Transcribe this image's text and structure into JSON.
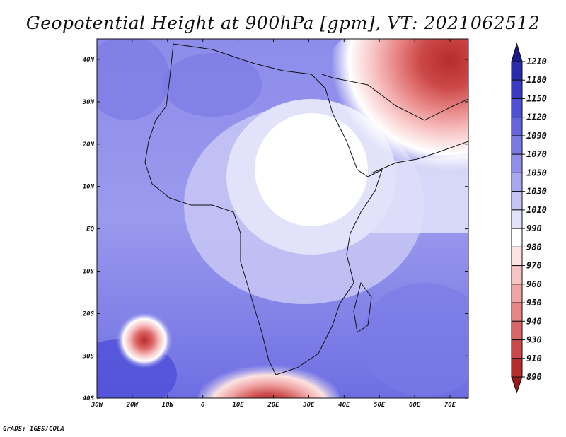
{
  "title": "Geopotential Height at 900hPa [gpm], VT: 2021062512",
  "credit": "GrADS: IGES/COLA",
  "axes": {
    "x_ticks": [
      "30W",
      "20W",
      "10W",
      "0",
      "10E",
      "20E",
      "30E",
      "40E",
      "50E",
      "60E",
      "70E"
    ],
    "y_ticks": [
      "40N",
      "30N",
      "20N",
      "10N",
      "EQ",
      "10S",
      "20S",
      "30S",
      "40S"
    ]
  },
  "colorbar": {
    "levels": [
      "1210",
      "1180",
      "1150",
      "1120",
      "1090",
      "1070",
      "1050",
      "1030",
      "1010",
      "990",
      "980",
      "970",
      "960",
      "950",
      "940",
      "930",
      "910",
      "890"
    ],
    "colors": [
      "#1a1a8c",
      "#2a2ab0",
      "#3a3ac8",
      "#4f4fd8",
      "#6464e0",
      "#7a7ae6",
      "#9090ec",
      "#a8a8f0",
      "#c4c4f5",
      "#e2e2fa",
      "#ffffff",
      "#fde2e2",
      "#f8c4c4",
      "#f0a4a4",
      "#e88484",
      "#dc6666",
      "#cc4848",
      "#b82c2c",
      "#9a1818"
    ]
  }
}
